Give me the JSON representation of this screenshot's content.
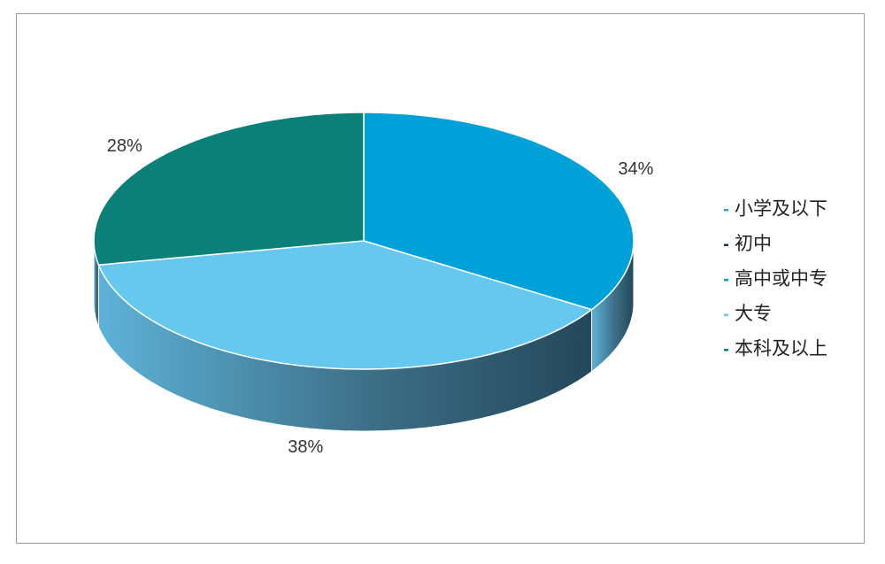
{
  "chart_data": {
    "type": "pie3d",
    "categories": [
      "小学及以下",
      "初中",
      "高中或中专",
      "大专",
      "本科及以上"
    ],
    "values": [
      0,
      0,
      34,
      38,
      28
    ],
    "value_labels": [
      null,
      null,
      "34%",
      "38%",
      "28%"
    ],
    "colors": [
      "#2aa3d6",
      "#0b3b57",
      "#00a0d8",
      "#66c8ef",
      "#0a8078"
    ],
    "legend": "right"
  }
}
